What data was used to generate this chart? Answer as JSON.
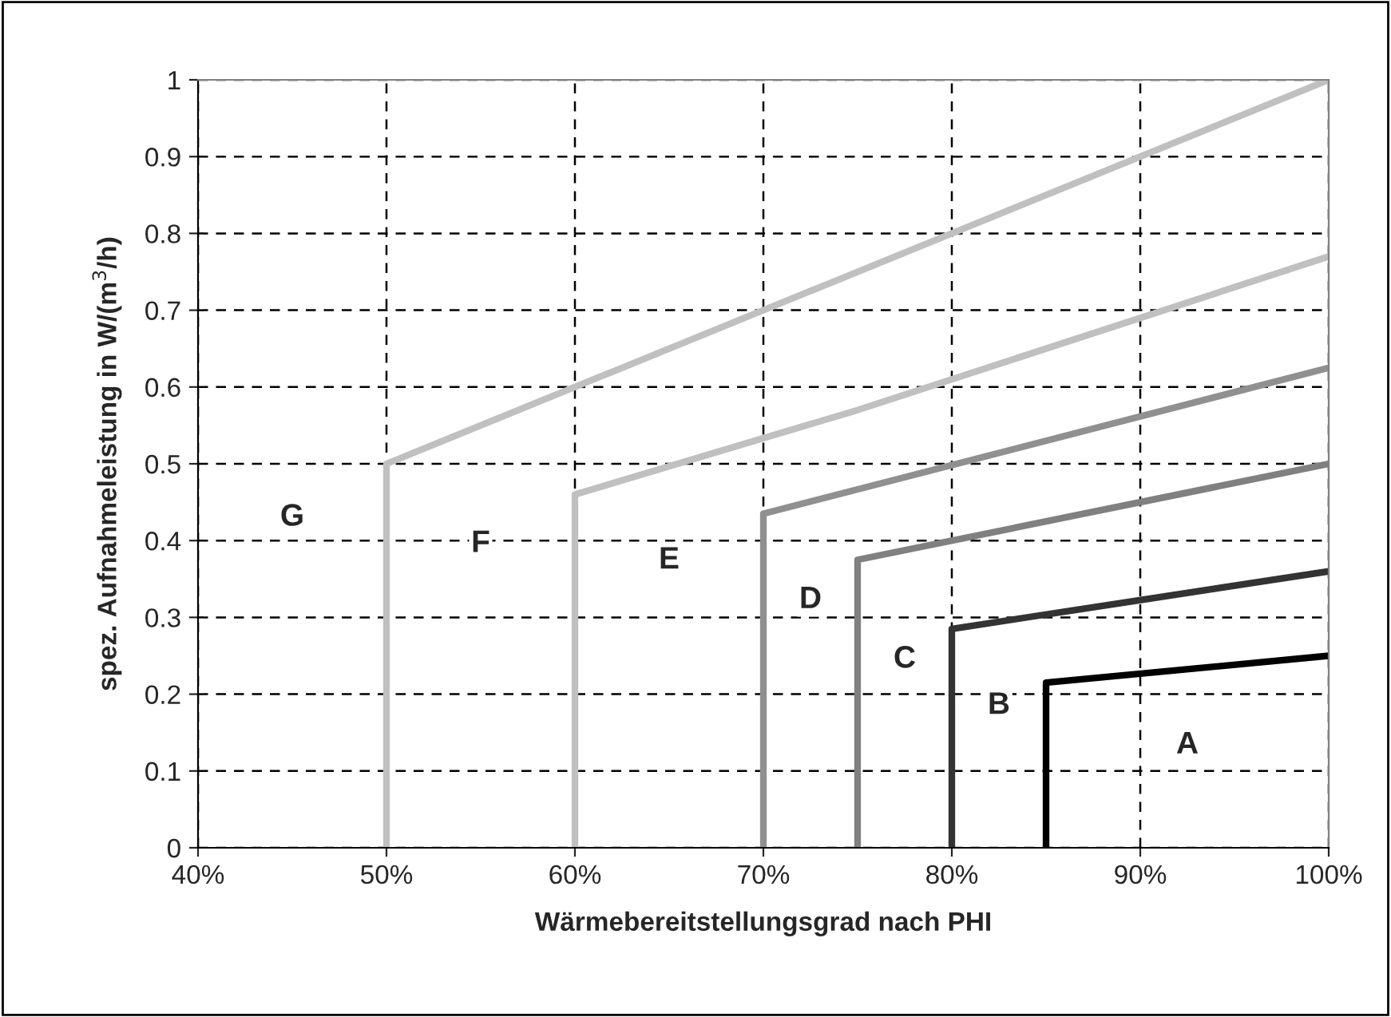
{
  "chart_data": {
    "type": "line",
    "xlabel": "Wärmebereitstellungsgrad nach PHI",
    "ylabel": "spez. Aufnahmeleistung in W/(m$^{3}$/h)",
    "series": [
      {
        "color": "#c0c0c0",
        "x": [
          50,
          50,
          100
        ],
        "values": [
          0,
          0.5,
          1.0
        ]
      },
      {
        "color": "#c0c0c0",
        "x": [
          60,
          60,
          75,
          100
        ],
        "values": [
          0,
          0.46,
          0.57,
          0.77
        ]
      },
      {
        "color": "#909090",
        "x": [
          70,
          70,
          100
        ],
        "values": [
          0,
          0.435,
          0.625
        ]
      },
      {
        "color": "#808080",
        "x": [
          75,
          75,
          100
        ],
        "values": [
          0,
          0.375,
          0.5
        ]
      },
      {
        "color": "#333333",
        "x": [
          80,
          80,
          100
        ],
        "values": [
          0,
          0.285,
          0.36
        ]
      },
      {
        "color": "#000000",
        "x": [
          85,
          85,
          100
        ],
        "values": [
          0,
          0.215,
          0.25
        ]
      }
    ],
    "annotations": [
      "G",
      "F",
      "E",
      "D",
      "C",
      "B",
      "A"
    ],
    "xlim": [
      40,
      100
    ],
    "xticks": [
      {
        "value": 40,
        "label": "40%"
      },
      {
        "value": 50,
        "label": "50%"
      },
      {
        "value": 60,
        "label": "60%"
      },
      {
        "value": 70,
        "label": "70%"
      },
      {
        "value": 80,
        "label": "80%"
      },
      {
        "value": 90,
        "label": "90%"
      },
      {
        "value": 100,
        "label": "100%"
      }
    ],
    "ylim": [
      0,
      1
    ],
    "yticks": [
      0,
      0.1,
      0.2,
      0.3,
      0.4,
      0.5,
      0.6,
      0.7,
      0.8,
      0.9,
      1
    ],
    "grid": true,
    "legend": false,
    "marker": "none",
    "line_style": "solid"
  }
}
